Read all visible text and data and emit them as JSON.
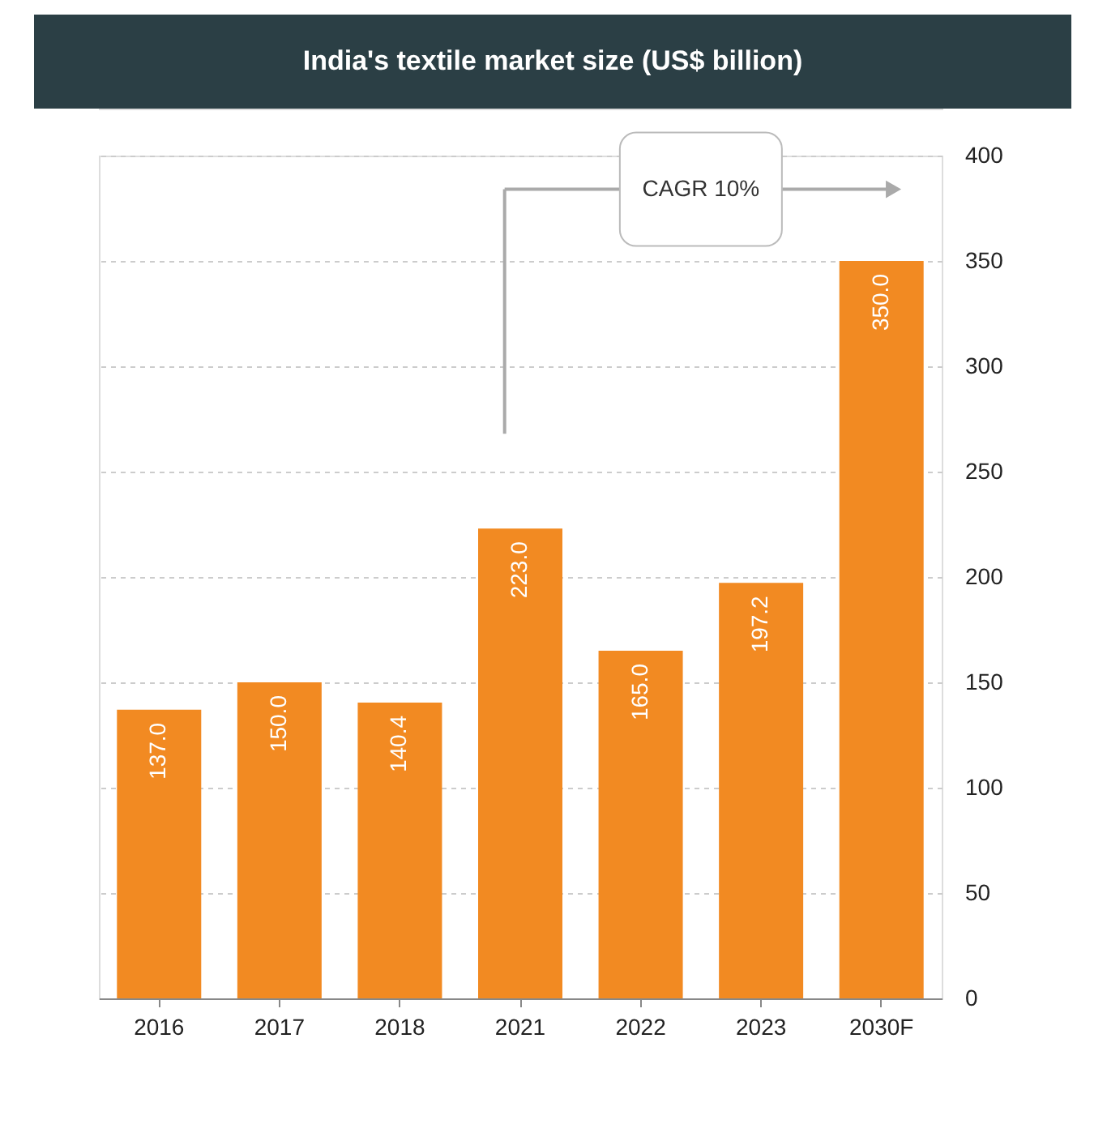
{
  "chart_data": {
    "type": "bar",
    "title": "India's textile market size (US$ billion)",
    "categories": [
      "2016",
      "2017",
      "2018",
      "2021",
      "2022",
      "2023",
      "2030F"
    ],
    "values": [
      137.0,
      150.0,
      140.4,
      223.0,
      165.0,
      197.2,
      350.0
    ],
    "value_labels": [
      "137.0",
      "150.0",
      "140.4",
      "223.0",
      "165.0",
      "197.2",
      "350.0"
    ],
    "color": "#f28a22",
    "ylim": [
      0,
      400
    ],
    "yticks": [
      0,
      50,
      100,
      150,
      200,
      250,
      300,
      350,
      400
    ],
    "grid": "y",
    "legend": false,
    "annotations": [
      "CAGR 10%"
    ]
  }
}
